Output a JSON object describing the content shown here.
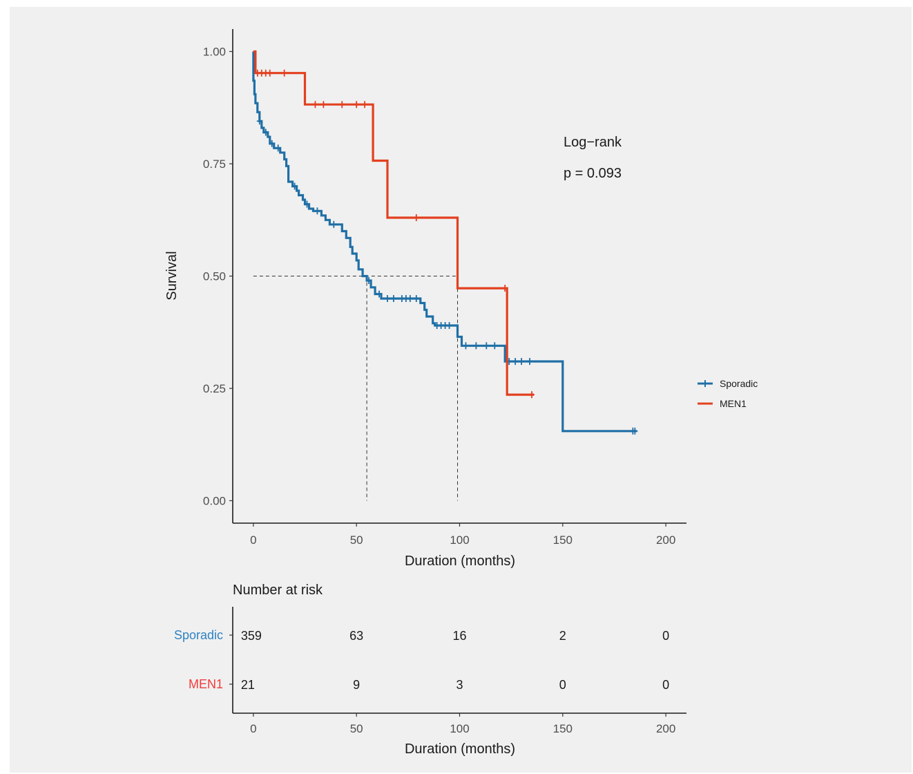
{
  "chart_data": [
    {
      "type": "line",
      "subtype": "kaplan-meier",
      "xlabel": "Duration (months)",
      "ylabel": "Survival",
      "xlim": [
        -10,
        210
      ],
      "ylim": [
        -0.05,
        1.05
      ],
      "xticks": [
        0,
        50,
        100,
        150,
        200
      ],
      "yticks": [
        0.0,
        0.25,
        0.5,
        0.75,
        1.0
      ],
      "ytick_labels": [
        "0.00",
        "0.25",
        "0.50",
        "0.75",
        "1.00"
      ],
      "grid": false,
      "legend_position": "right",
      "annotation": {
        "line1": "Log−rank",
        "line2": "p = 0.093"
      },
      "median_reference": {
        "survival": 0.5,
        "medians": [
          55,
          99
        ]
      },
      "series": [
        {
          "name": "Sporadic",
          "color": "#1f6fa6",
          "steps": [
            [
              0,
              1.0
            ],
            [
              0,
              0.935
            ],
            [
              0.5,
              0.935
            ],
            [
              0.5,
              0.905
            ],
            [
              1,
              0.905
            ],
            [
              1,
              0.885
            ],
            [
              2,
              0.885
            ],
            [
              2,
              0.865
            ],
            [
              3,
              0.865
            ],
            [
              3,
              0.845
            ],
            [
              4,
              0.845
            ],
            [
              4,
              0.83
            ],
            [
              5,
              0.83
            ],
            [
              5,
              0.82
            ],
            [
              7,
              0.82
            ],
            [
              7,
              0.81
            ],
            [
              8,
              0.81
            ],
            [
              8,
              0.795
            ],
            [
              10,
              0.795
            ],
            [
              10,
              0.785
            ],
            [
              13,
              0.785
            ],
            [
              13,
              0.775
            ],
            [
              15,
              0.775
            ],
            [
              15,
              0.76
            ],
            [
              16,
              0.76
            ],
            [
              16,
              0.745
            ],
            [
              17,
              0.745
            ],
            [
              17,
              0.71
            ],
            [
              19,
              0.71
            ],
            [
              19,
              0.7
            ],
            [
              21,
              0.7
            ],
            [
              21,
              0.69
            ],
            [
              22,
              0.69
            ],
            [
              22,
              0.68
            ],
            [
              24,
              0.68
            ],
            [
              24,
              0.67
            ],
            [
              25,
              0.67
            ],
            [
              25,
              0.66
            ],
            [
              27,
              0.66
            ],
            [
              27,
              0.65
            ],
            [
              29,
              0.65
            ],
            [
              29,
              0.645
            ],
            [
              33,
              0.645
            ],
            [
              33,
              0.635
            ],
            [
              35,
              0.635
            ],
            [
              35,
              0.625
            ],
            [
              37,
              0.625
            ],
            [
              37,
              0.615
            ],
            [
              43,
              0.615
            ],
            [
              43,
              0.6
            ],
            [
              45,
              0.6
            ],
            [
              45,
              0.585
            ],
            [
              47,
              0.585
            ],
            [
              47,
              0.565
            ],
            [
              48,
              0.565
            ],
            [
              48,
              0.55
            ],
            [
              50,
              0.55
            ],
            [
              50,
              0.535
            ],
            [
              51,
              0.535
            ],
            [
              51,
              0.515
            ],
            [
              53,
              0.515
            ],
            [
              53,
              0.5
            ],
            [
              55,
              0.5
            ],
            [
              55,
              0.49
            ],
            [
              57,
              0.49
            ],
            [
              57,
              0.475
            ],
            [
              59,
              0.475
            ],
            [
              59,
              0.46
            ],
            [
              62,
              0.46
            ],
            [
              62,
              0.45
            ],
            [
              81,
              0.45
            ],
            [
              81,
              0.44
            ],
            [
              83,
              0.44
            ],
            [
              83,
              0.425
            ],
            [
              84,
              0.425
            ],
            [
              84,
              0.41
            ],
            [
              87,
              0.41
            ],
            [
              87,
              0.395
            ],
            [
              88,
              0.395
            ],
            [
              88,
              0.39
            ],
            [
              99,
              0.39
            ],
            [
              99,
              0.365
            ],
            [
              101,
              0.365
            ],
            [
              101,
              0.345
            ],
            [
              122,
              0.345
            ],
            [
              122,
              0.31
            ],
            [
              150,
              0.31
            ],
            [
              150,
              0.155
            ],
            [
              186,
              0.155
            ]
          ],
          "censor_marks": [
            [
              3,
              0.845
            ],
            [
              6,
              0.82
            ],
            [
              9,
              0.795
            ],
            [
              12,
              0.785
            ],
            [
              20,
              0.7
            ],
            [
              26,
              0.66
            ],
            [
              31,
              0.645
            ],
            [
              39,
              0.615
            ],
            [
              56,
              0.49
            ],
            [
              61,
              0.46
            ],
            [
              65,
              0.45
            ],
            [
              68,
              0.45
            ],
            [
              72,
              0.45
            ],
            [
              74,
              0.45
            ],
            [
              76,
              0.45
            ],
            [
              79,
              0.45
            ],
            [
              89,
              0.39
            ],
            [
              91,
              0.39
            ],
            [
              93,
              0.39
            ],
            [
              95,
              0.39
            ],
            [
              103,
              0.345
            ],
            [
              108,
              0.345
            ],
            [
              113,
              0.345
            ],
            [
              117,
              0.345
            ],
            [
              124,
              0.31
            ],
            [
              127,
              0.31
            ],
            [
              130,
              0.31
            ],
            [
              134,
              0.31
            ],
            [
              184,
              0.155
            ],
            [
              185,
              0.155
            ]
          ]
        },
        {
          "name": "MEN1",
          "color": "#e2401f",
          "steps": [
            [
              0,
              1.0
            ],
            [
              1,
              1.0
            ],
            [
              1,
              0.952
            ],
            [
              25,
              0.952
            ],
            [
              25,
              0.882
            ],
            [
              58,
              0.882
            ],
            [
              58,
              0.757
            ],
            [
              65,
              0.757
            ],
            [
              65,
              0.63
            ],
            [
              99,
              0.63
            ],
            [
              99,
              0.473
            ],
            [
              123,
              0.473
            ],
            [
              123,
              0.236
            ],
            [
              136,
              0.236
            ]
          ],
          "censor_marks": [
            [
              2,
              0.952
            ],
            [
              4,
              0.952
            ],
            [
              6,
              0.952
            ],
            [
              8,
              0.952
            ],
            [
              15,
              0.952
            ],
            [
              30,
              0.882
            ],
            [
              34,
              0.882
            ],
            [
              43,
              0.882
            ],
            [
              50,
              0.882
            ],
            [
              54,
              0.882
            ],
            [
              79,
              0.63
            ],
            [
              122,
              0.473
            ],
            [
              135,
              0.236
            ]
          ]
        }
      ]
    },
    {
      "type": "table",
      "title": "Number at risk",
      "xlabel": "Duration (months)",
      "xlim": [
        -10,
        210
      ],
      "xticks": [
        0,
        50,
        100,
        150,
        200
      ],
      "rows": [
        {
          "name": "Sporadic",
          "color": "#2f82c2",
          "values": [
            359,
            63,
            16,
            2,
            0
          ]
        },
        {
          "name": "MEN1",
          "color": "#f23b3b",
          "values": [
            21,
            9,
            3,
            0,
            0
          ]
        }
      ]
    }
  ]
}
